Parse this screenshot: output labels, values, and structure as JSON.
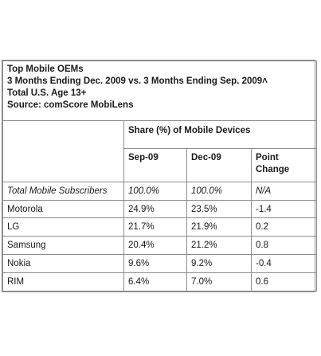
{
  "header": {
    "lines": [
      "Top Mobile OEMs",
      "3 Months Ending Dec. 2009 vs. 3 Months Ending Sep. 2009˄",
      "Total U.S. Age 13+",
      "Source: comScore MobiLens"
    ]
  },
  "table": {
    "group_header": "Share (%) of Mobile Devices",
    "columns": [
      "Sep-09",
      "Dec-09",
      "Point Change"
    ],
    "rows": [
      {
        "label": "Total Mobile Subscribers",
        "sep": "100.0%",
        "dec": "100.0%",
        "change": "N/A"
      },
      {
        "label": "Motorola",
        "sep": "24.9%",
        "dec": "23.5%",
        "change": "-1.4"
      },
      {
        "label": "LG",
        "sep": "21.7%",
        "dec": "21.9%",
        "change": "0.2"
      },
      {
        "label": "Samsung",
        "sep": "20.4%",
        "dec": "21.2%",
        "change": "0.8"
      },
      {
        "label": "Nokia",
        "sep": "9.6%",
        "dec": "9.2%",
        "change": "-0.4"
      },
      {
        "label": "RIM",
        "sep": "6.4%",
        "dec": "7.0%",
        "change": "0.6"
      }
    ]
  }
}
